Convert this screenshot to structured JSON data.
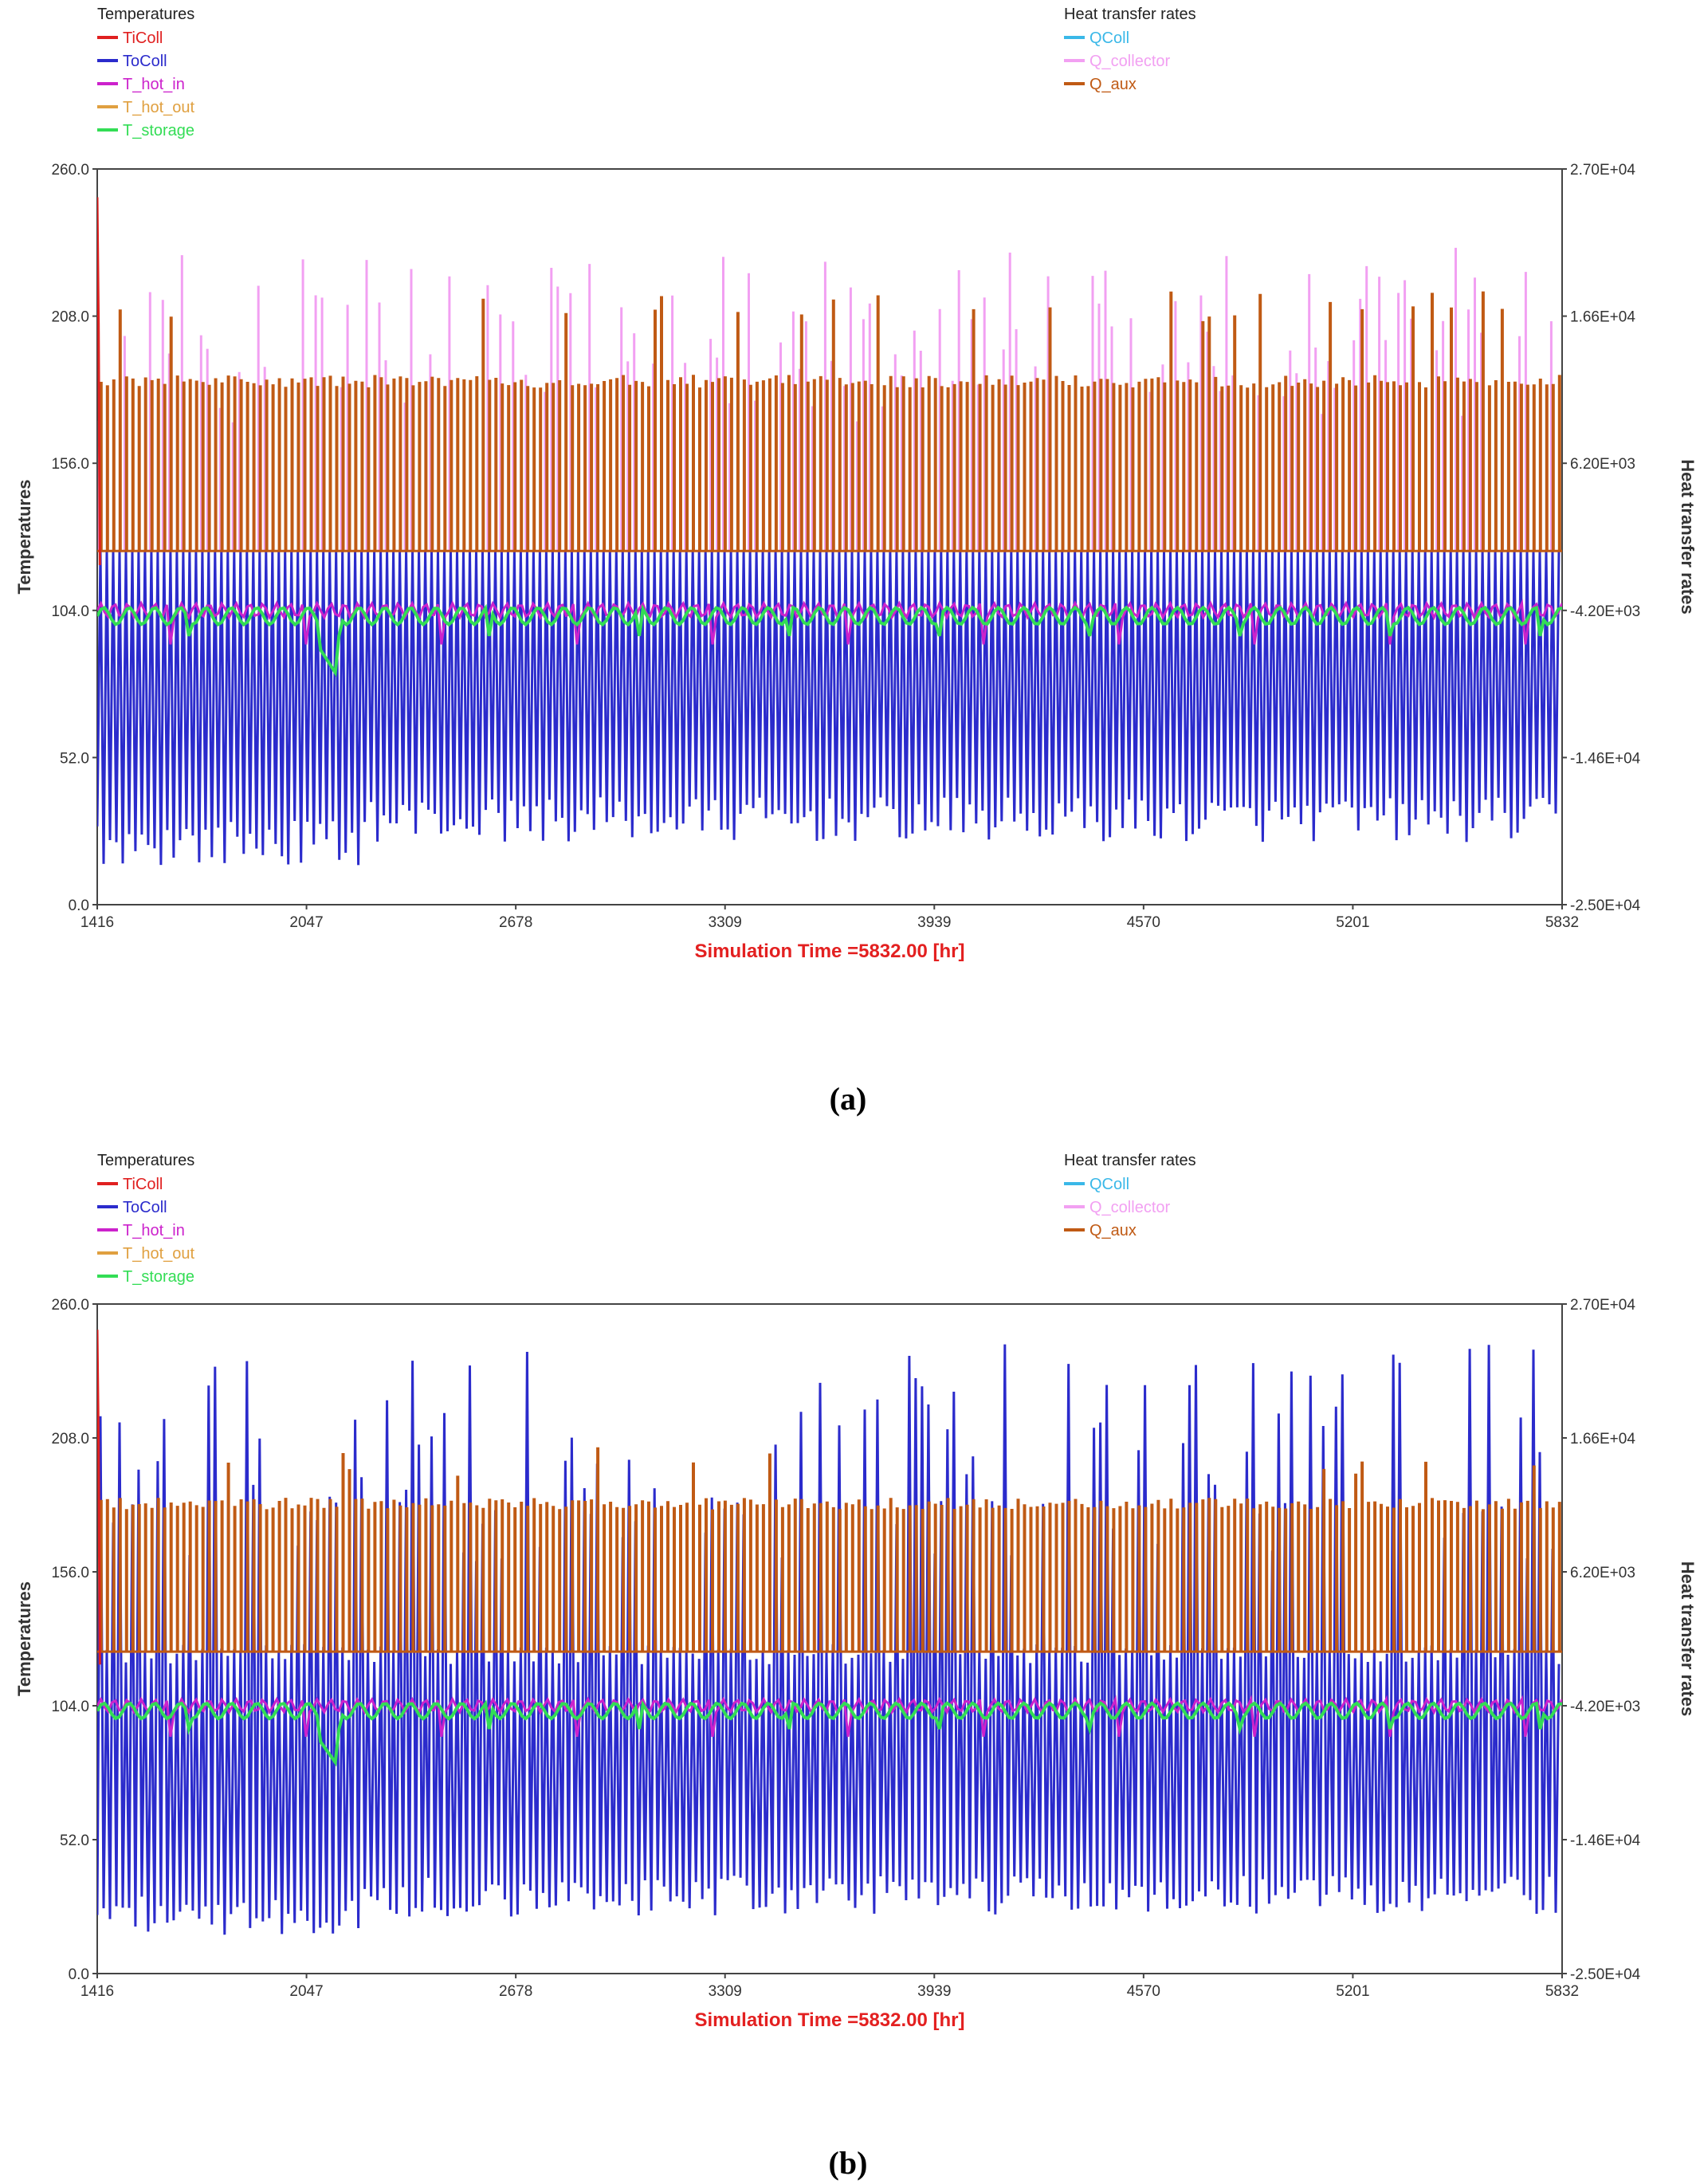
{
  "captions": [
    "(a)",
    "(b)"
  ],
  "colors": {
    "TiColl": "#e02020",
    "ToColl": "#2b2bcc",
    "T_hot_in": "#cc22cc",
    "T_hot_out": "#e0a040",
    "T_storage": "#33dd55",
    "QColl": "#3ab8e8",
    "Q_collector": "#f2a0f2",
    "Q_aux": "#c05a14"
  },
  "chart_data": [
    {
      "type": "line",
      "panel": "(a)",
      "legend_left_title": "Temperatures",
      "legend_right_title": "Heat transfer rates",
      "series_left": [
        "TiColl",
        "ToColl",
        "T_hot_in",
        "T_hot_out",
        "T_storage"
      ],
      "series_right": [
        "QColl",
        "Q_collector",
        "Q_aux"
      ],
      "ylabel": "Temperatures",
      "y2label": "Heat transfer rates",
      "xlabel": "Simulation Time =5832.00 [hr]",
      "xlim": [
        1416,
        5832
      ],
      "x_ticks": [
        "1416",
        "2047",
        "2678",
        "3309",
        "3939",
        "4570",
        "5201",
        "5832"
      ],
      "ylim": [
        0,
        260
      ],
      "y_ticks": [
        "260.0",
        "208.0",
        "156.0",
        "104.0",
        "52.0",
        "0.0"
      ],
      "y2lim": [
        -25000,
        27000
      ],
      "y2_ticks": [
        "2.70E+04",
        "1.66E+04",
        "6.20E+03",
        "-4.20E+03",
        "-1.46E+04",
        "-2.50E+04"
      ],
      "approx_levels": {
        "ToColl_min": [
          10,
          35
        ],
        "ToColl_max_y2": 0,
        "T_storage": 103,
        "T_hot_in": 105,
        "Q_aux_base_y2": 0,
        "Q_aux_typical_y2": 12000,
        "Q_aux_peak_y2": 18500,
        "Q_collector_peak_y2": 20000
      }
    },
    {
      "type": "line",
      "panel": "(b)",
      "legend_left_title": "Temperatures",
      "legend_right_title": "Heat transfer rates",
      "series_left": [
        "TiColl",
        "ToColl",
        "T_hot_in",
        "T_hot_out",
        "T_storage"
      ],
      "series_right": [
        "QColl",
        "Q_collector",
        "Q_aux"
      ],
      "ylabel": "Temperatures",
      "y2label": "Heat transfer rates",
      "xlabel": "Simulation Time =5832.00 [hr]",
      "xlim": [
        1416,
        5832
      ],
      "x_ticks": [
        "1416",
        "2047",
        "2678",
        "3309",
        "3939",
        "4570",
        "5201",
        "5832"
      ],
      "ylim": [
        0,
        260
      ],
      "y_ticks": [
        "260.0",
        "208.0",
        "156.0",
        "104.0",
        "52.0",
        "0.0"
      ],
      "y2lim": [
        -25000,
        27000
      ],
      "y2_ticks": [
        "2.70E+04",
        "1.66E+04",
        "6.20E+03",
        "-4.20E+03",
        "-1.46E+04",
        "-2.50E+04"
      ],
      "approx_levels": {
        "ToColl_min": [
          10,
          35
        ],
        "ToColl_peak": 245,
        "T_storage": 103,
        "T_hot_in": 105,
        "Q_aux_base_y2": 0,
        "Q_aux_typical_y2": 11500,
        "Q_aux_peak_y2": 16000
      }
    }
  ]
}
